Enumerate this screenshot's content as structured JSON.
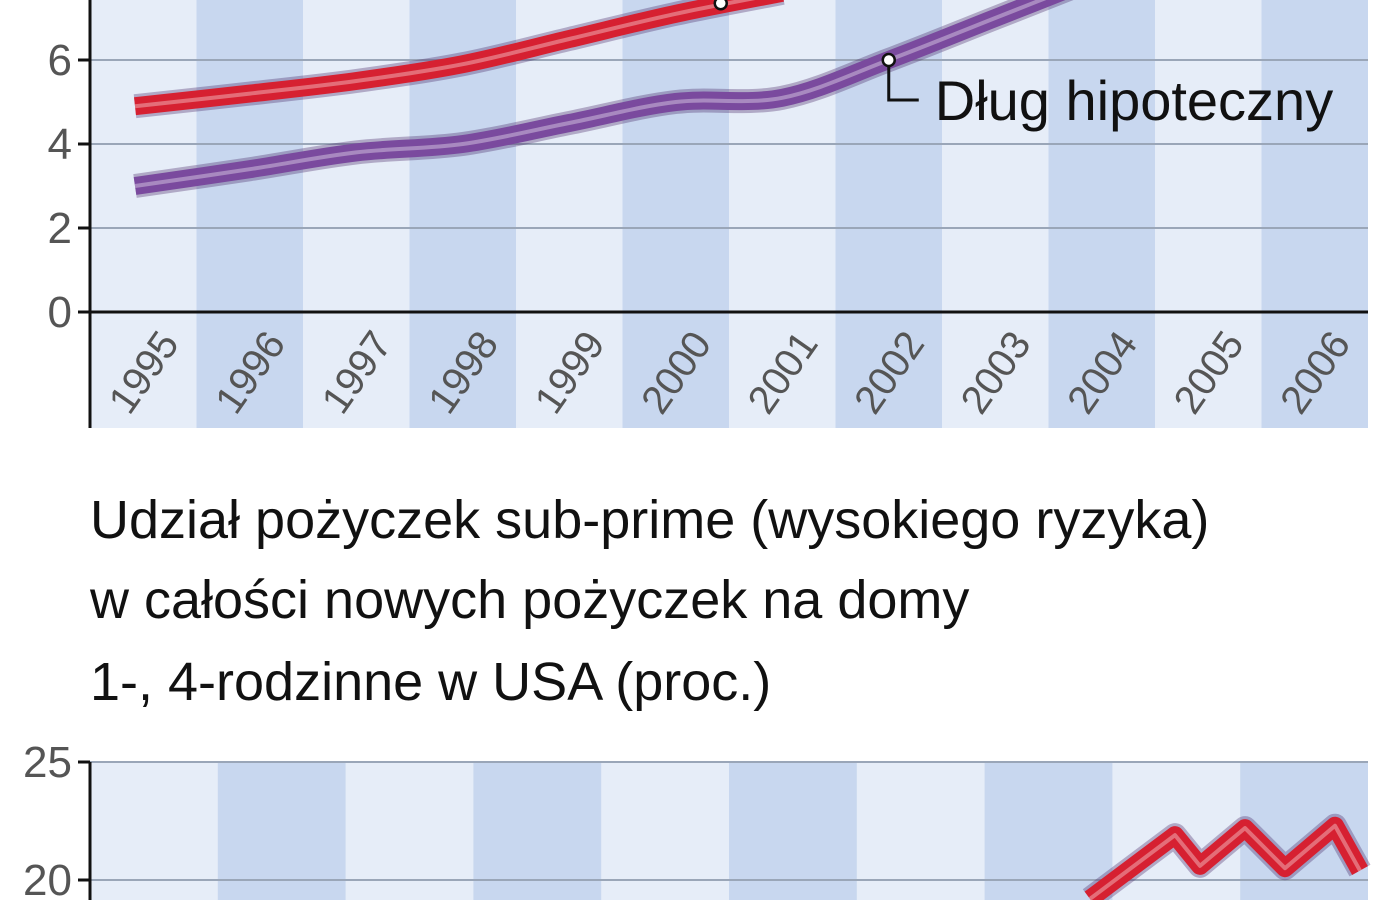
{
  "chart_data": [
    {
      "type": "line",
      "title": "",
      "xlabel": "",
      "ylabel": "",
      "x": [
        "1995",
        "1996",
        "1997",
        "1998",
        "1999",
        "2000",
        "2001",
        "2002",
        "2003",
        "2004",
        "2005",
        "2006"
      ],
      "yticks": [
        "0",
        "2",
        "4",
        "6"
      ],
      "series": [
        {
          "name": "",
          "values": [
            4.9,
            5.2,
            5.5,
            5.9,
            6.5,
            7.1,
            7.6,
            null,
            null,
            null,
            null,
            null
          ]
        },
        {
          "name": "Dług hipoteczny",
          "values": [
            3.0,
            3.4,
            3.8,
            4.0,
            4.5,
            5.0,
            5.1,
            6.0,
            7.0,
            8.0,
            null,
            null
          ]
        }
      ],
      "annotations": [
        "Dług hipoteczny"
      ],
      "ylim": [
        0,
        7.5
      ],
      "grid": true,
      "colors": {
        "series0": "#d62031",
        "series1": "#7a4a9e",
        "bg": "#e6edf8",
        "band": "#c8d7ef"
      }
    },
    {
      "type": "line",
      "title_lines": [
        "Udział pożyczek sub-prime (wysokiego ryzyka)",
        "w całości nowych pożyczek na domy",
        "1-, 4-rodzinne w USA (proc.)"
      ],
      "xlabel": "",
      "ylabel": "",
      "yticks": [
        "20",
        "25"
      ],
      "series": [
        {
          "name": "",
          "values": [
            19.2,
            21.9,
            20.6,
            22.2,
            20.5,
            22.3,
            20.4
          ]
        }
      ],
      "ylim": [
        18,
        25
      ],
      "grid": true,
      "colors": {
        "series0": "#d62031",
        "bg": "#e6edf8",
        "band": "#c8d7ef"
      }
    }
  ]
}
